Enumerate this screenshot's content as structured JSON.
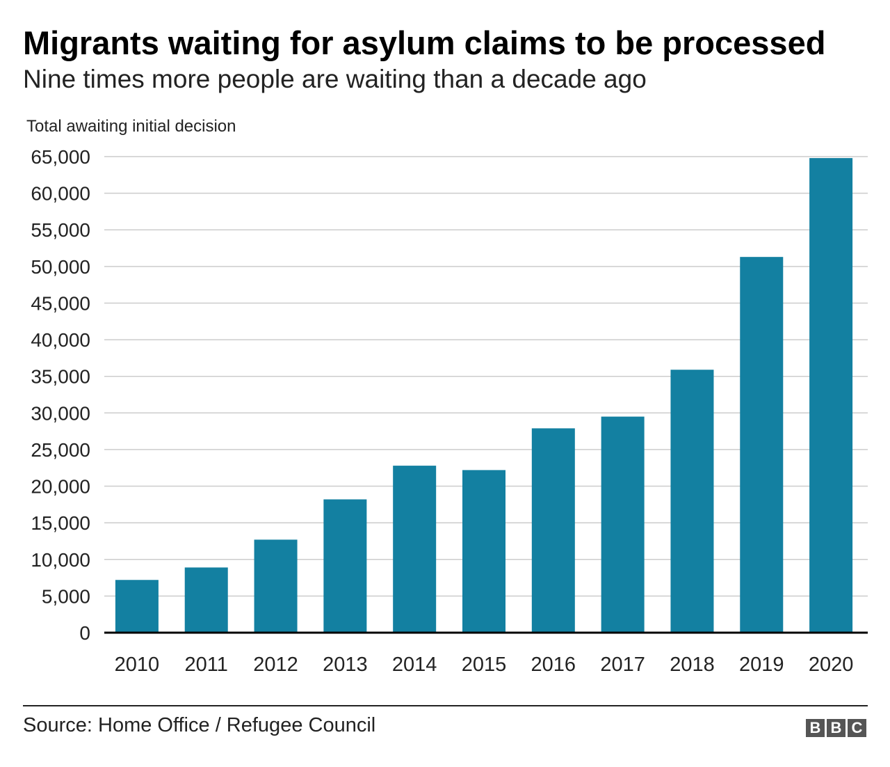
{
  "chart_data": {
    "type": "bar",
    "title": "Migrants waiting for asylum claims to be processed",
    "subtitle": "Nine times more people are waiting than a decade ago",
    "xlabel": "",
    "ylabel": "Total awaiting initial decision",
    "categories": [
      "2010",
      "2011",
      "2012",
      "2013",
      "2014",
      "2015",
      "2016",
      "2017",
      "2018",
      "2019",
      "2020"
    ],
    "values": [
      7200,
      8900,
      12700,
      18200,
      22800,
      22200,
      27900,
      29500,
      35900,
      51300,
      64800
    ],
    "ylim": [
      0,
      65000
    ],
    "yticks": [
      0,
      5000,
      10000,
      15000,
      20000,
      25000,
      30000,
      35000,
      40000,
      45000,
      50000,
      55000,
      60000,
      65000
    ],
    "ytick_labels": [
      "0",
      "5,000",
      "10,000",
      "15,000",
      "20,000",
      "25,000",
      "30,000",
      "35,000",
      "40,000",
      "45,000",
      "50,000",
      "55,000",
      "60,000",
      "65,000"
    ],
    "grid": true,
    "bar_color": "#1380a1",
    "source": "Source: Home Office / Refugee Council"
  },
  "logo": {
    "letters": [
      "B",
      "B",
      "C"
    ],
    "text": "BBC"
  }
}
